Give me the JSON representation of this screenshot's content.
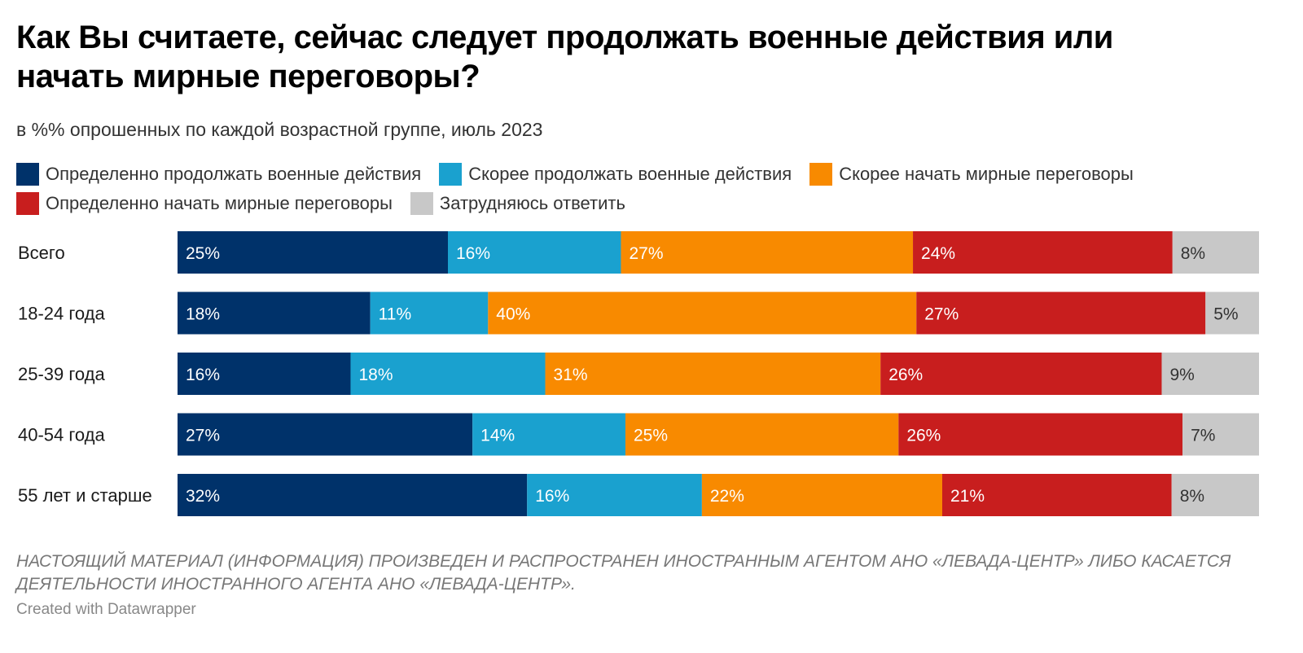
{
  "header": {
    "title": "Как Вы считаете, сейчас следует продолжать военные действия или начать мирные переговоры?",
    "subtitle": "в %% опрошенных по каждой возрастной группе, июль 2023"
  },
  "legend": [
    {
      "label": "Определенно продолжать военные действия",
      "color": "#00326a"
    },
    {
      "label": "Скорее продолжать военные действия",
      "color": "#1aa1cf"
    },
    {
      "label": "Скорее начать мирные переговоры",
      "color": "#f88a00"
    },
    {
      "label": "Определенно начать мирные переговоры",
      "color": "#c81e1e"
    },
    {
      "label": "Затрудняюсь ответить",
      "color": "#c8c8c8"
    }
  ],
  "chart_data": {
    "type": "bar",
    "orientation": "horizontal",
    "stacked": true,
    "categories": [
      "Всего",
      "18-24 года",
      "25-39 года",
      "40-54 года",
      "55 лет и старше"
    ],
    "series": [
      {
        "name": "Определенно продолжать военные действия",
        "values": [
          25,
          18,
          16,
          27,
          32
        ],
        "color": "#00326a",
        "text_color": "#ffffff"
      },
      {
        "name": "Скорее продолжать военные действия",
        "values": [
          16,
          11,
          18,
          14,
          16
        ],
        "color": "#1aa1cf",
        "text_color": "#ffffff"
      },
      {
        "name": "Скорее начать мирные переговоры",
        "values": [
          27,
          40,
          31,
          25,
          22
        ],
        "color": "#f88a00",
        "text_color": "#ffffff"
      },
      {
        "name": "Определенно начать мирные переговоры",
        "values": [
          24,
          27,
          26,
          26,
          21
        ],
        "color": "#c81e1e",
        "text_color": "#ffffff"
      },
      {
        "name": "Затрудняюсь ответить",
        "values": [
          8,
          5,
          9,
          7,
          8
        ],
        "color": "#c8c8c8",
        "text_color": "#333333"
      }
    ],
    "value_suffix": "%",
    "title": "Как Вы считаете, сейчас следует продолжать военные действия или начать мирные переговоры?",
    "subtitle": "в %% опрошенных по каждой возрастной группе, июль 2023",
    "legend_position": "top-left",
    "grid": false
  },
  "footer": {
    "note": "НАСТОЯЩИЙ МАТЕРИАЛ (ИНФОРМАЦИЯ) ПРОИЗВЕДЕН И РАСПРОСТРАНЕН ИНОСТРАННЫМ АГЕНТОМ АНО «ЛЕВАДА-ЦЕНТР» ЛИБО КАСАЕТСЯ ДЕЯТЕЛЬНОСТИ ИНОСТРАННОГО АГЕНТА АНО «ЛЕВАДА-ЦЕНТР».",
    "credit": "Created with Datawrapper"
  }
}
